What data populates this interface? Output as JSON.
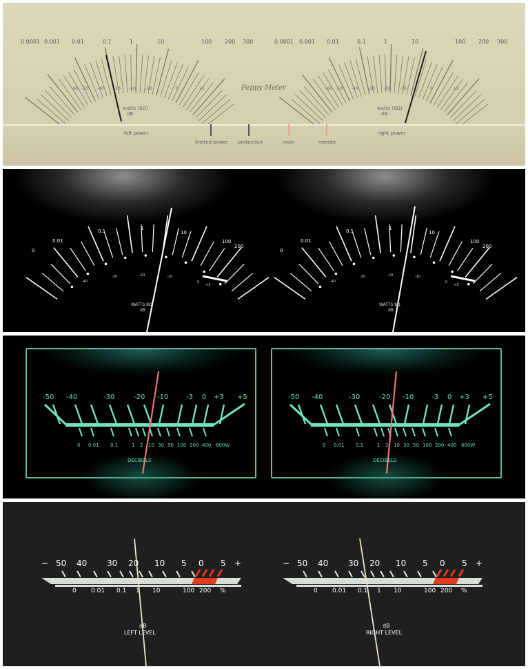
{
  "meter1": {
    "watts_scale": [
      "0.0001",
      "0.001",
      "0.01",
      "0.1",
      "1",
      "10",
      "100",
      "200",
      "300"
    ],
    "db_scale": [
      "-60",
      "-50",
      "-40",
      "-30",
      "-20",
      "-10",
      "0",
      "+5"
    ],
    "unit_label": "watts (8Ω)",
    "db_label": "dB",
    "brand": "Peppy Meter",
    "left_label": "left power",
    "right_label": "right power",
    "indicators": [
      "limited power",
      "protection",
      "main",
      "remote"
    ]
  },
  "meter2": {
    "watts_scale": [
      "0",
      "0.01",
      "0.1",
      "1",
      "10",
      "100",
      "200"
    ],
    "db_scale": [
      "-40",
      "-30",
      "-20",
      "-10",
      "0",
      "+3"
    ],
    "unit_label": "WATTS 8Ω",
    "db_label": "dB"
  },
  "meter3": {
    "db_scale": [
      "-50",
      "-40",
      "-30",
      "-20",
      "-10",
      "-3",
      "0",
      "+3",
      "+5"
    ],
    "watts_scale": [
      "0",
      "0.01",
      "0.1",
      "1",
      "2",
      "10",
      "30",
      "50",
      "100",
      "200",
      "400",
      "600W"
    ],
    "label": "DECIBELS"
  },
  "meter4": {
    "db_scale": [
      "−",
      "50",
      "40",
      "30",
      "20",
      "10",
      "5",
      "0",
      "5",
      "+"
    ],
    "pct_scale": [
      "0",
      "0.01",
      "0.1",
      "1",
      "10",
      "100",
      "200",
      "%"
    ],
    "db_label": "dB",
    "left_label": "LEFT LEVEL",
    "right_label": "RIGHT LEVEL"
  },
  "colors": {
    "meter1_bg": "#d8d3b5",
    "meter3_accent": "#5fe0b8",
    "needle_red": "#e87878",
    "meter4_red": "#e23b20"
  }
}
